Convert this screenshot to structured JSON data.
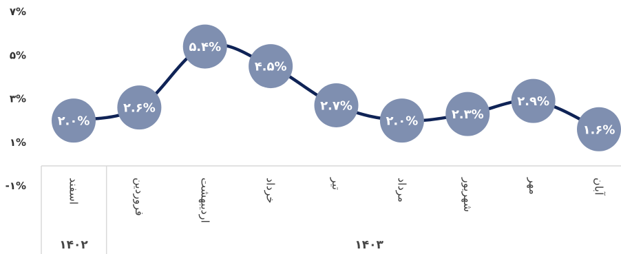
{
  "chart_data": {
    "type": "line",
    "yticks": [
      "-۱%",
      "۱%",
      "۳%",
      "۵%",
      "۷%"
    ],
    "ylim": [
      -1,
      7
    ],
    "categories": [
      "اسفند",
      "فروردین",
      "اردیبهشت",
      "خرداد",
      "تیر",
      "مرداد",
      "شهریور",
      "مهر",
      "آبان"
    ],
    "groups": [
      {
        "label": "۱۴۰۲",
        "count": 1
      },
      {
        "label": "۱۴۰۳",
        "count": 8
      }
    ],
    "series": [
      {
        "values": [
          2.0,
          2.6,
          5.4,
          4.5,
          2.7,
          2.0,
          2.3,
          2.9,
          1.6
        ],
        "labels": [
          "۲.۰%",
          "۲.۶%",
          "۵.۴%",
          "۴.۵%",
          "۲.۷%",
          "۲.۰%",
          "۲.۳%",
          "۲.۹%",
          "۱.۶%"
        ]
      }
    ],
    "colors": {
      "line": "#0f2356",
      "marker": "#7f8fb0",
      "label": "#ffffff",
      "axis": "#d9d9d9"
    }
  }
}
